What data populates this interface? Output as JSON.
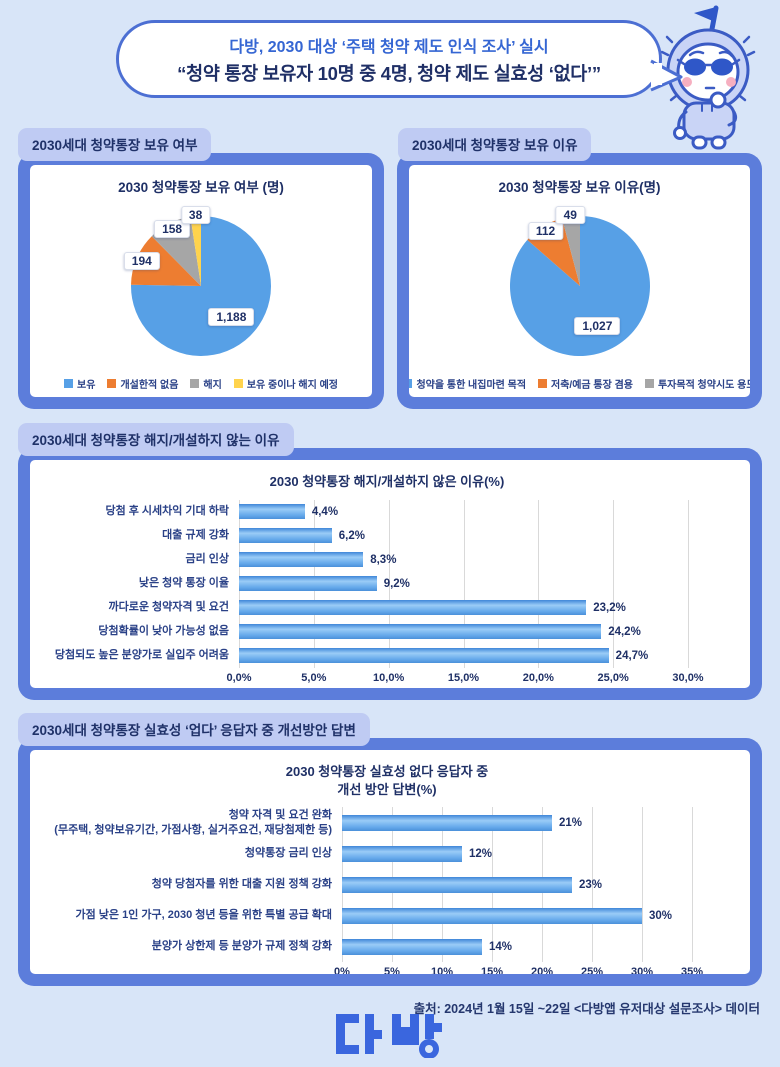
{
  "header": {
    "title_line1": "다방, 2030 대상 ‘주택 청약 제도 인식 조사’ 실시",
    "title_line2": "“청약 통장 보유자 10명 중 4명, 청약 제도 실효성 ‘없다’”"
  },
  "sections": [
    {
      "label": "2030세대 청약통장 보유 여부"
    },
    {
      "label": "2030세대 청약통장 보유 이유"
    },
    {
      "label": "2030세대 청약통장 해지/개설하지 않는 이유"
    },
    {
      "label": "2030세대 청약통장 실효성 ‘업다’ 응답자 중 개선방안 답변"
    }
  ],
  "chart_data": [
    {
      "type": "pie",
      "title": "2030 청약통장 보유 여부 (명)",
      "labels": [
        "보유",
        "개설한적 없음",
        "해지",
        "보유 중이나 해지 예정"
      ],
      "values": [
        1188,
        194,
        158,
        38
      ],
      "value_labels": [
        "1,188",
        "194",
        "158",
        "38"
      ],
      "colors": [
        "#57A0E6",
        "#ED7D31",
        "#A6A6A6",
        "#FFD34D"
      ],
      "legend_position": "bottom",
      "start_angle_deg": 0,
      "direction": "clockwise"
    },
    {
      "type": "pie",
      "title": "2030 청약통장 보유 이유(명)",
      "labels": [
        "청약을 통한 내집마련 목적",
        "저축/예금 통장 겸용",
        "투자목적 청약시도 용도"
      ],
      "values": [
        1027,
        112,
        49
      ],
      "value_labels": [
        "1,027",
        "112",
        "49"
      ],
      "colors": [
        "#57A0E6",
        "#ED7D31",
        "#A6A6A6"
      ],
      "legend_position": "bottom",
      "start_angle_deg": 0,
      "direction": "clockwise"
    },
    {
      "type": "bar",
      "orientation": "horizontal",
      "title": "2030 청약통장 해지/개설하지 않은 이유(%)",
      "categories": [
        "당첨 후 시세차익 기대 하락",
        "대출 규제 강화",
        "금리 인상",
        "낮은 청약 통장 이율",
        "까다로운 청약자격 및 요건",
        "당첨확률이 낮아 가능성 없음",
        "당첨되도 높은 분양가로 실입주 어려움"
      ],
      "values": [
        4.4,
        6.2,
        8.3,
        9.2,
        23.2,
        24.2,
        24.7
      ],
      "value_labels": [
        "4,4%",
        "6,2%",
        "8,3%",
        "9,2%",
        "23,2%",
        "24,2%",
        "24,7%"
      ],
      "xlim": [
        0,
        30
      ],
      "tick_values": [
        0,
        5,
        10,
        15,
        20,
        25,
        30
      ],
      "ticks": [
        "0,0%",
        "5,0%",
        "10,0%",
        "15,0%",
        "20,0%",
        "25,0%",
        "30,0%"
      ],
      "grid": true,
      "bar_color": "#66A9EB"
    },
    {
      "type": "bar",
      "orientation": "horizontal",
      "title_line1": "2030 청약통장 실효성 없다 응답자 중",
      "title_line2": "개선 방안 답변(%)",
      "categories": [
        [
          "청약 자격 및 요건 완화",
          "(무주택, 청약보유기간, 가점사항, 실거주요건, 재당첨제한 등)"
        ],
        "청약통장 금리 인상",
        "청약 당첨자를 위한 대출 지원 정책 강화",
        "가점 낮은 1인 가구, 2030 청년 등을 위한 특별 공급 확대",
        "분양가 상한제 등 분양가 규제 정책 강화"
      ],
      "values": [
        21,
        12,
        23,
        30,
        14
      ],
      "value_labels": [
        "21%",
        "12%",
        "23%",
        "30%",
        "14%"
      ],
      "xlim": [
        0,
        35
      ],
      "tick_values": [
        0,
        5,
        10,
        15,
        20,
        25,
        30,
        35
      ],
      "ticks": [
        "0%",
        "5%",
        "10%",
        "15%",
        "20%",
        "25%",
        "30%",
        "35%"
      ],
      "grid": true,
      "bar_color": "#66A9EB"
    }
  ],
  "footer": {
    "source": "출처: 2024년 1월 15일 ~22일 <다방앱 유저대상 설문조사> 데이터",
    "logo_text": "다방"
  },
  "colors": {
    "background": "#D8E5F8",
    "panel_frame": "#5C7DDB",
    "chip_bg": "#BFCBF3",
    "navy_text": "#1F3066",
    "header_blue": "#3566D3",
    "logo_blue": "#3A66DE"
  }
}
